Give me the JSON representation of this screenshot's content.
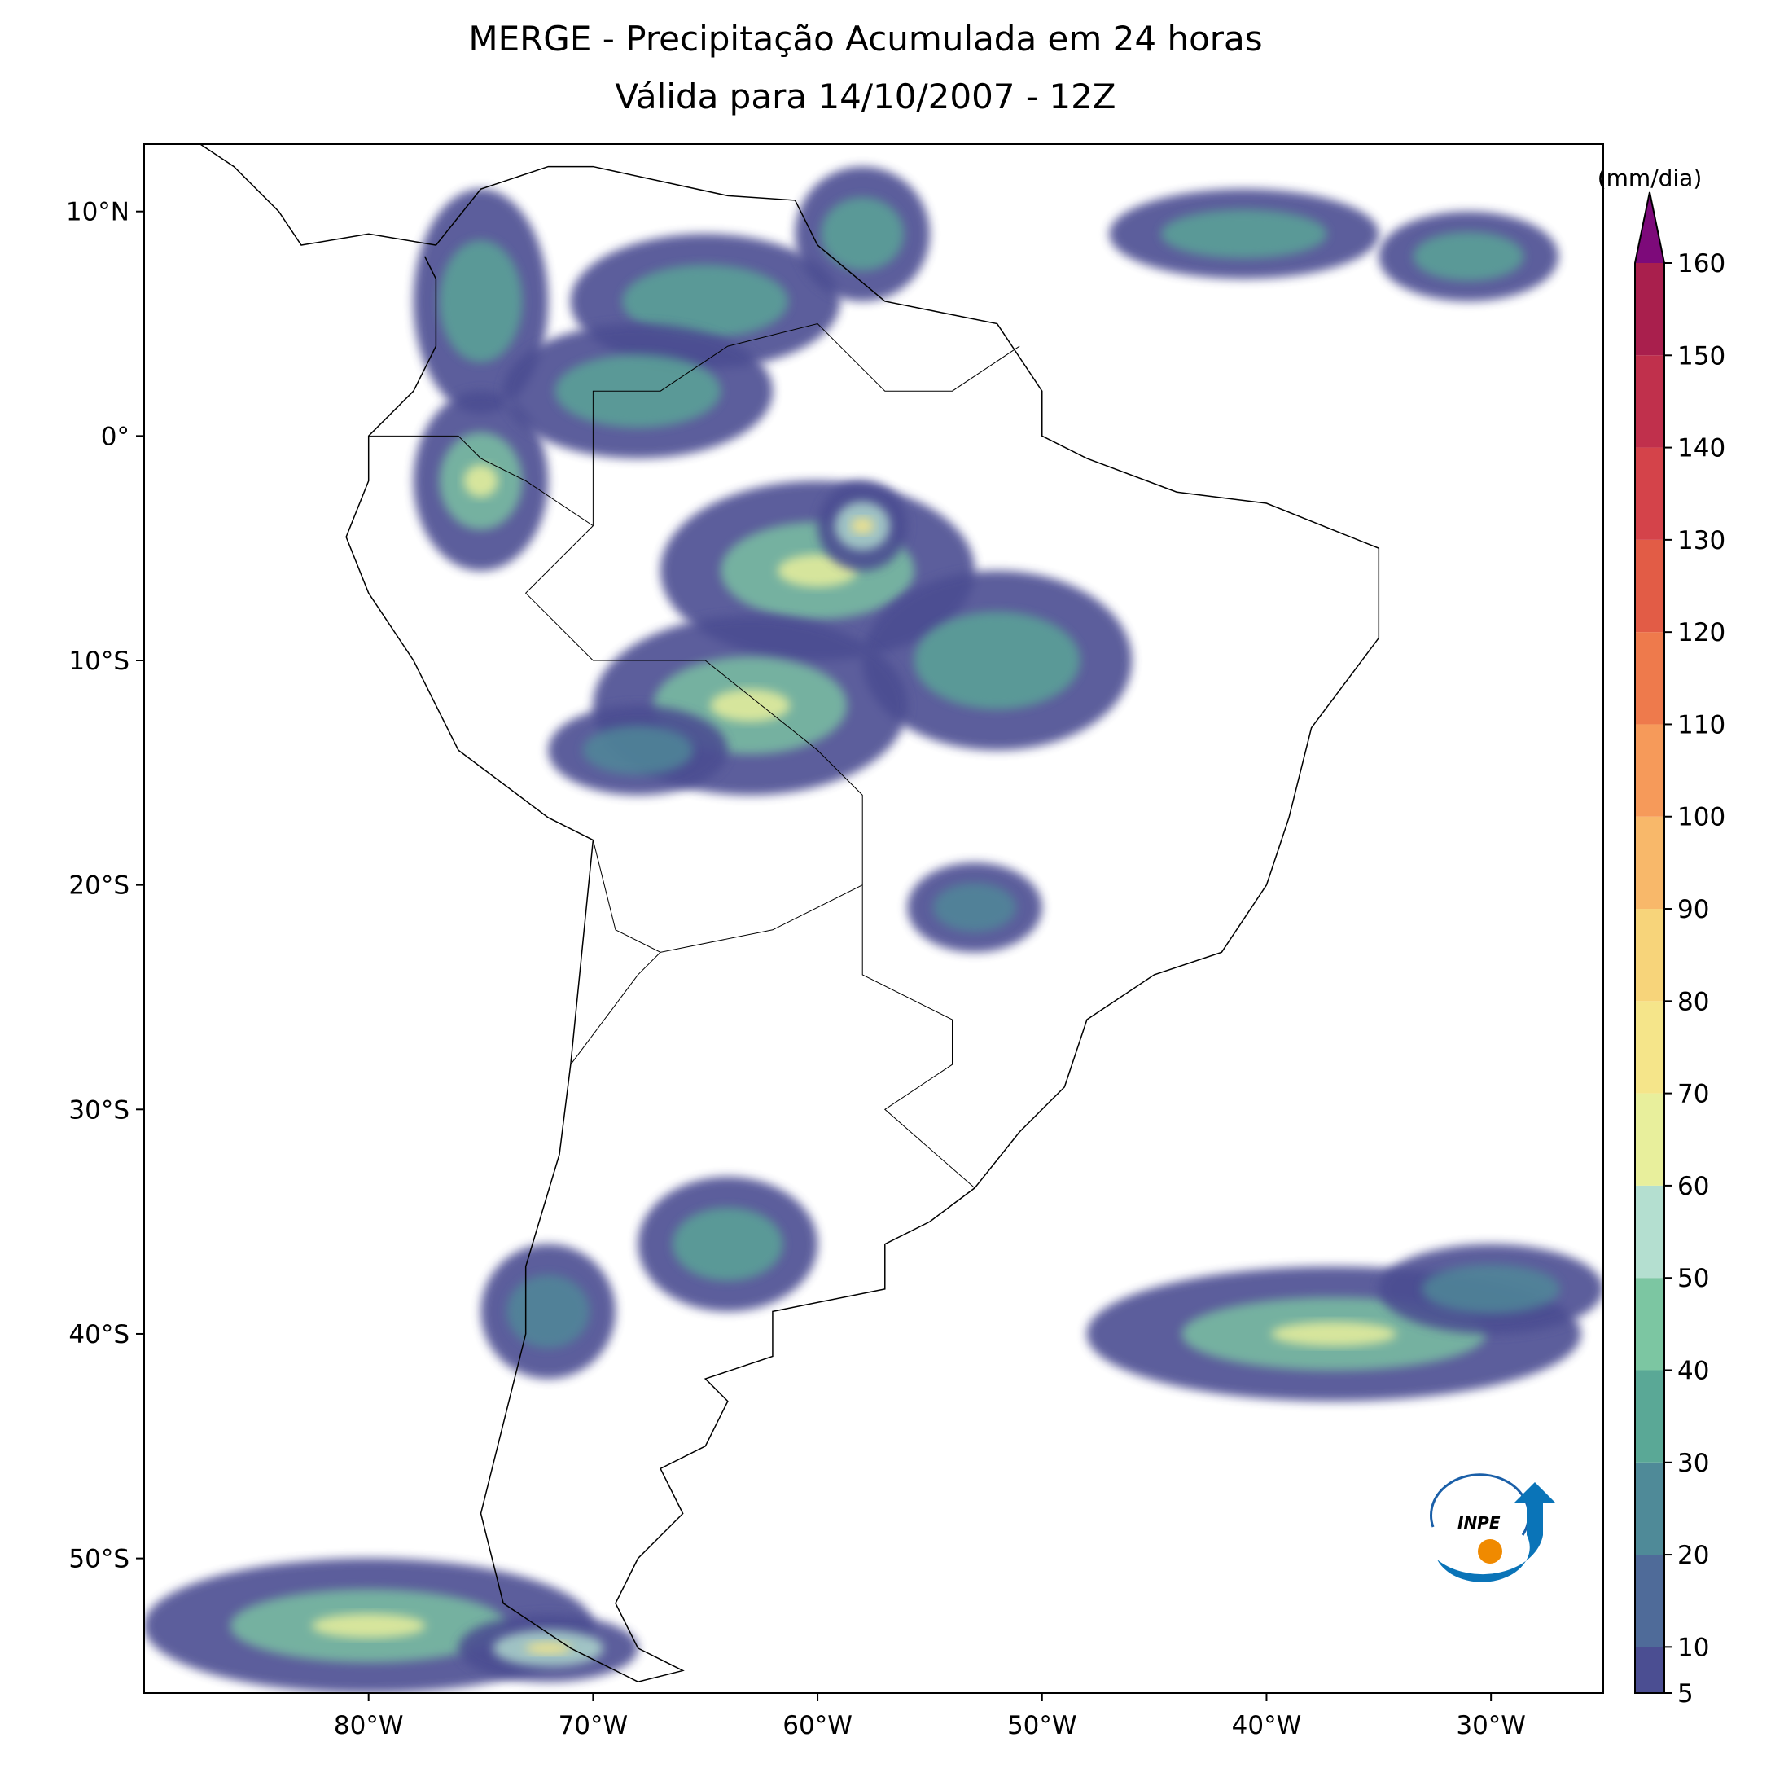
{
  "title": [
    "MERGE - Precipitação Acumulada em 24 horas",
    "Válida para 14/10/2007 - 12Z"
  ],
  "map": {
    "xlim": [
      -90,
      -25
    ],
    "ylim": [
      -56,
      13
    ],
    "xticks": [
      {
        "value": -80,
        "label": "80°W"
      },
      {
        "value": -70,
        "label": "70°W"
      },
      {
        "value": -60,
        "label": "60°W"
      },
      {
        "value": -50,
        "label": "50°W"
      },
      {
        "value": -40,
        "label": "40°W"
      },
      {
        "value": -30,
        "label": "30°W"
      }
    ],
    "yticks": [
      {
        "value": 10,
        "label": "10°N"
      },
      {
        "value": 0,
        "label": "0°"
      },
      {
        "value": -10,
        "label": "10°S"
      },
      {
        "value": -20,
        "label": "20°S"
      },
      {
        "value": -30,
        "label": "30°S"
      },
      {
        "value": -40,
        "label": "40°S"
      },
      {
        "value": -50,
        "label": "50°S"
      }
    ]
  },
  "colorbar": {
    "label": "(mm/dia)",
    "ticks": [
      5,
      10,
      20,
      30,
      40,
      50,
      60,
      70,
      80,
      90,
      100,
      110,
      120,
      130,
      140,
      150,
      160
    ],
    "colors": [
      "#4b4e92",
      "#4f6b99",
      "#4f8a98",
      "#5aa896",
      "#7cc6a2",
      "#b4dfd0",
      "#e8ef9c",
      "#f5e58a",
      "#f7d47a",
      "#f8b86a",
      "#f69a5a",
      "#ee7a4c",
      "#e25c46",
      "#d4434a",
      "#c0304c",
      "#a91f4d"
    ],
    "extend_color": "#7d0a7a"
  },
  "logo": {
    "text": "INPE"
  }
}
